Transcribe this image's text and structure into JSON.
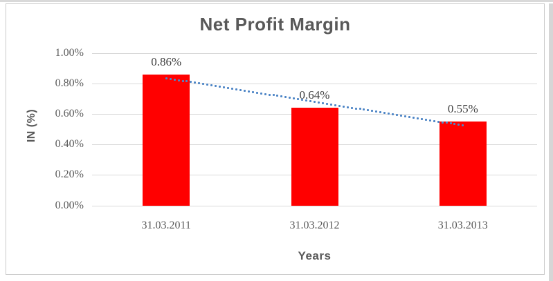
{
  "chart_data": {
    "type": "bar",
    "title": "Net Profit Margin",
    "ylabel": "IN (%)",
    "xlabel": "Years",
    "categories": [
      "31.03.2011",
      "31.03.2012",
      "31.03.2013"
    ],
    "values": [
      0.86,
      0.64,
      0.55
    ],
    "data_labels": [
      "0.86%",
      "0.64%",
      "0.55%"
    ],
    "y_ticks": [
      {
        "value": 0.0,
        "label": "0.00%"
      },
      {
        "value": 0.2,
        "label": "0.20%"
      },
      {
        "value": 0.4,
        "label": "0.40%"
      },
      {
        "value": 0.6,
        "label": "0.60%"
      },
      {
        "value": 0.8,
        "label": "0.80%"
      },
      {
        "value": 1.0,
        "label": "1.00%"
      }
    ],
    "ylim": [
      0,
      1.0
    ],
    "grid": true,
    "legend": "none",
    "bar_color": "#ff0000",
    "trendline": {
      "type": "linear",
      "style": "dotted",
      "color": "#4f86c6",
      "start_value": 0.836,
      "end_value": 0.525
    },
    "colors": {
      "title_text": "#595959",
      "tick_text": "#595959",
      "data_label_text": "#404040",
      "gridline": "#d9d9d9",
      "chart_border": "#c9c9c9"
    }
  }
}
